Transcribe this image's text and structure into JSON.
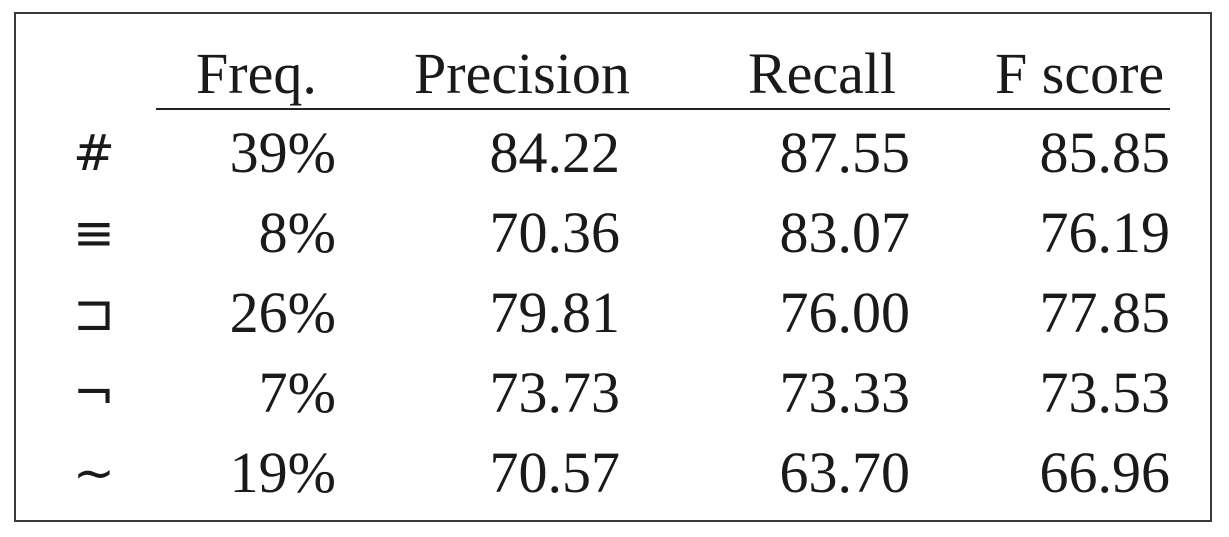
{
  "table": {
    "headers": [
      "Freq.",
      "Precision",
      "Recall",
      "F score"
    ],
    "rows": [
      {
        "symbol": "#",
        "freq": "39%",
        "precision": "84.22",
        "recall": "87.55",
        "fscore": "85.85"
      },
      {
        "symbol": "≡",
        "freq": "8%",
        "precision": "70.36",
        "recall": "83.07",
        "fscore": "76.19"
      },
      {
        "symbol": "⊐",
        "freq": "26%",
        "precision": "79.81",
        "recall": "76.00",
        "fscore": "77.85"
      },
      {
        "symbol": "¬",
        "freq": "7%",
        "precision": "73.73",
        "recall": "73.33",
        "fscore": "73.53"
      },
      {
        "symbol": "∼",
        "freq": "19%",
        "precision": "70.57",
        "recall": "63.70",
        "fscore": "66.96"
      }
    ]
  }
}
